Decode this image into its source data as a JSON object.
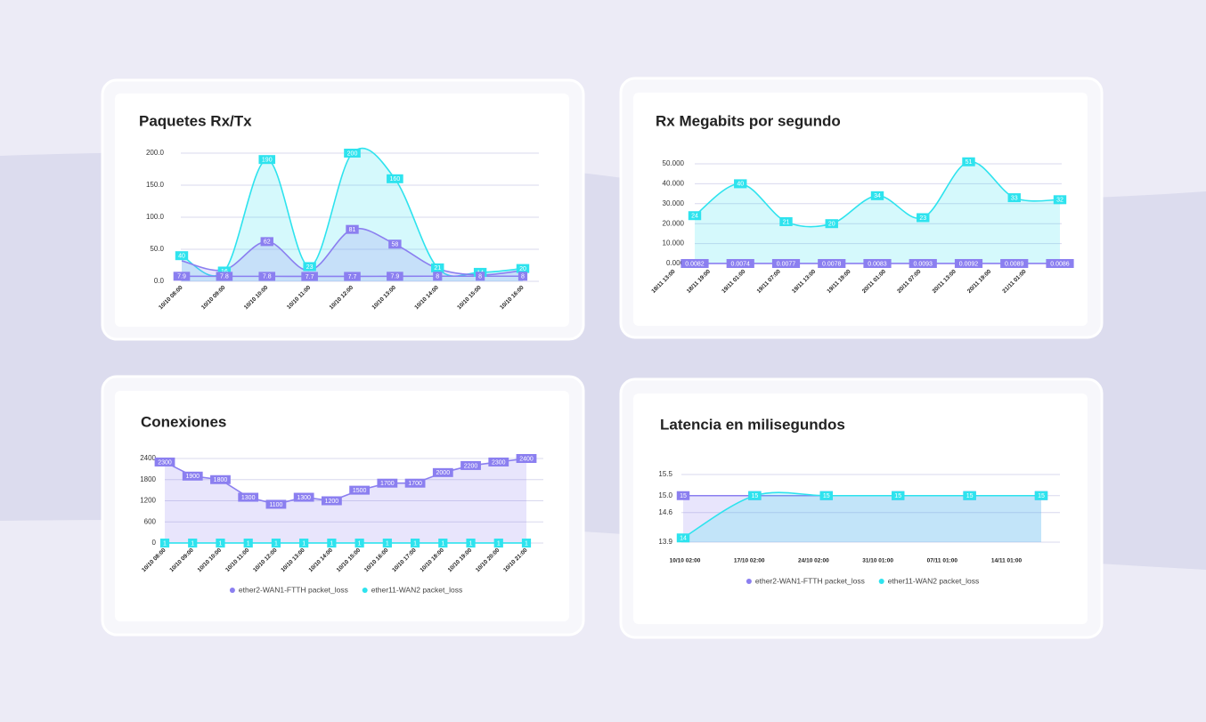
{
  "chart_data": [
    {
      "type": "line",
      "title": "Paquetes Rx/Tx",
      "smooth": true,
      "grid": true,
      "categories": [
        "10/10 08:00",
        "10/10 09:00",
        "10/10 10:00",
        "10/10 11:00",
        "10/10 12:00",
        "10/10 13:00",
        "10/10 14:00",
        "10/10 15:00",
        "10/10 16:00"
      ],
      "ylim": [
        0,
        200
      ],
      "yticks": [
        {
          "value": 0,
          "label": "0.0"
        },
        {
          "value": 50,
          "label": "50.0"
        },
        {
          "value": 100,
          "label": "100.0"
        },
        {
          "value": 150,
          "label": "150.0"
        },
        {
          "value": 200,
          "label": "200.0"
        }
      ],
      "series": [
        {
          "color": "#2ee3ee",
          "fill": true,
          "values": [
            40,
            16,
            190,
            23,
            200,
            160,
            21,
            14,
            20
          ]
        },
        {
          "color": "#8b7ff0",
          "fill": true,
          "values": [
            32,
            18,
            62,
            17,
            81,
            58,
            20,
            10,
            17
          ],
          "value_labels": [
            null,
            null,
            "62",
            null,
            "81",
            "58",
            null,
            null,
            null
          ]
        },
        {
          "color": "#8b7ff0",
          "fill": false,
          "values": [
            7.9,
            7.8,
            7.8,
            7.7,
            7.7,
            7.9,
            8,
            8,
            8
          ]
        }
      ]
    },
    {
      "type": "line",
      "title": "Rx Megabits por segundo",
      "smooth": true,
      "grid": true,
      "xtick_labels": [
        "18/11 13:00",
        "18/11 19:00",
        "19/11 01:00",
        "19/11 07:00",
        "19/11 13:00",
        "19/11 19:00",
        "20/11 01:00",
        "20/11 07:00",
        "20/11 13:00",
        "20/11 19:00",
        "21/11 01:00"
      ],
      "ylim": [
        0,
        50
      ],
      "yticks": [
        {
          "value": 0,
          "label": "0.000"
        },
        {
          "value": 10,
          "label": "10.000"
        },
        {
          "value": 20,
          "label": "20.000"
        },
        {
          "value": 30,
          "label": "30.000"
        },
        {
          "value": 40,
          "label": "40.000"
        },
        {
          "value": 50,
          "label": "50.000"
        }
      ],
      "series": [
        {
          "color": "#2ee3ee",
          "fill": true,
          "values": [
            24,
            40,
            21,
            20,
            34,
            23,
            51,
            33,
            32
          ]
        },
        {
          "color": "#8b7ff0",
          "fill": false,
          "values": [
            0.0082,
            0.0074,
            0.0077,
            0.0078,
            0.0083,
            0.0093,
            0.0092,
            0.0089,
            0.0086
          ]
        }
      ]
    },
    {
      "type": "line",
      "title": "Conexiones",
      "smooth": false,
      "grid": true,
      "legend": true,
      "categories": [
        "10/10 08:00",
        "10/10 09:00",
        "10/10 10:00",
        "10/10 11:00",
        "10/10 12:00",
        "10/10 13:00",
        "10/10 14:00",
        "10/10 15:00",
        "10/10 16:00",
        "10/10 17:00",
        "10/10 18:00",
        "10/10 19:00",
        "10/10 20:00",
        "10/10 21:00"
      ],
      "ylim": [
        0,
        2400
      ],
      "yticks": [
        0,
        600,
        1200,
        1800,
        2400
      ],
      "series": [
        {
          "name": "ether2-WAN1-FTTH packet_loss",
          "color": "#8b7ff0",
          "fill": true,
          "values": [
            2300,
            1900,
            1800,
            1300,
            1100,
            1300,
            1200,
            1500,
            1700,
            1700,
            2000,
            2200,
            2300,
            2400
          ]
        },
        {
          "name": "ether11-WAN2 packet_loss",
          "color": "#2ee3ee",
          "fill": false,
          "values": [
            1,
            1,
            1,
            1,
            1,
            1,
            1,
            1,
            1,
            1,
            1,
            1,
            1,
            1
          ]
        }
      ]
    },
    {
      "type": "line",
      "title": "Latencia en milisegundos",
      "smooth": true,
      "grid": true,
      "legend": true,
      "xtick_labels": [
        "10/10 02:00",
        "17/10 02:00",
        "24/10 02:00",
        "31/10 01:00",
        "07/11 01:00",
        "14/11 01:00"
      ],
      "ylim": [
        13.9,
        15.5
      ],
      "yticks": [
        13.9,
        14.6,
        {
          "value": 15,
          "label": "15.0"
        },
        15.5
      ],
      "series": [
        {
          "name": "ether2-WAN1-FTTH packet_loss",
          "color": "#8b7ff0",
          "fill": true,
          "values": [
            15,
            15,
            15,
            15,
            15,
            15
          ]
        },
        {
          "name": "ether11-WAN2 packet_loss",
          "color": "#2ee3ee",
          "fill": true,
          "values": [
            14,
            15,
            15,
            15,
            15,
            15
          ]
        }
      ]
    }
  ]
}
